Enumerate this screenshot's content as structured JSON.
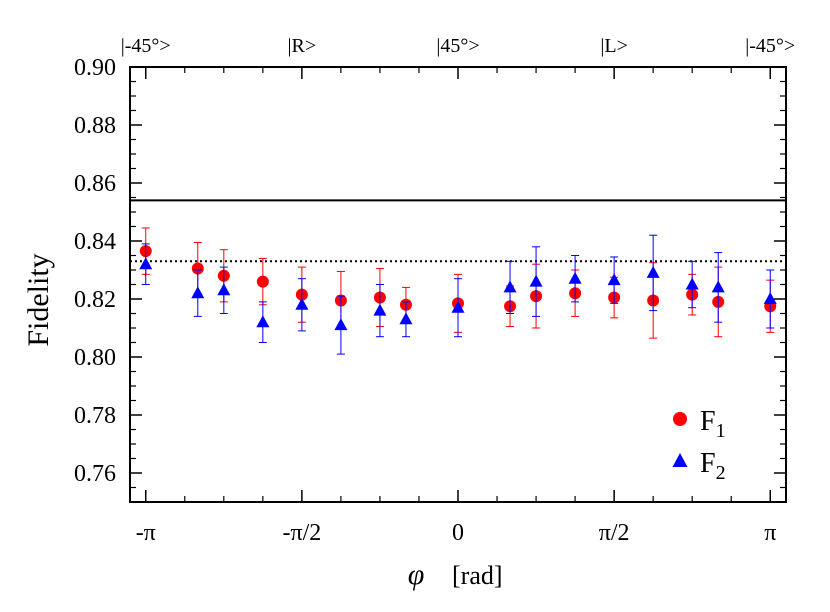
{
  "chart_data": {
    "type": "scatter",
    "xlabel_symbol": "φ",
    "xlabel_unit": "[rad]",
    "ylabel": "Fidelity",
    "ylim": [
      0.75,
      0.9
    ],
    "xlim": [
      -3.3,
      3.3
    ],
    "y_ticks": [
      0.76,
      0.78,
      0.8,
      0.82,
      0.84,
      0.86,
      0.88,
      0.9
    ],
    "y_tick_labels": [
      "0.76",
      "0.78",
      "0.80",
      "0.82",
      "0.84",
      "0.86",
      "0.88",
      "0.90"
    ],
    "x_ticks": [
      -3.14159,
      -1.5708,
      0,
      1.5708,
      3.14159
    ],
    "x_tick_labels": [
      "-π",
      "-π/2",
      "0",
      "π/2",
      "π"
    ],
    "top_labels": [
      {
        "x": -3.14159,
        "text": "|-45°>"
      },
      {
        "x": -1.5708,
        "text": "|R>"
      },
      {
        "x": 0,
        "text": "|45°>"
      },
      {
        "x": 1.5708,
        "text": "|L>"
      },
      {
        "x": 3.14159,
        "text": "|-45°>"
      }
    ],
    "hlines": [
      {
        "y": 0.854,
        "style": "solid"
      },
      {
        "y": 0.833,
        "style": "dotted"
      }
    ],
    "legend_position": "bottom-right",
    "series": [
      {
        "name": "F1",
        "marker": "circle",
        "color": "#ff0000",
        "x": [
          -3.14159,
          -2.618,
          -2.356,
          -1.9635,
          -1.5708,
          -1.1781,
          -0.7854,
          -0.5236,
          0,
          0.5236,
          0.7854,
          1.1781,
          1.5708,
          1.9635,
          2.356,
          2.618,
          3.14159
        ],
        "y": [
          0.8365,
          0.8305,
          0.828,
          0.826,
          0.8215,
          0.8195,
          0.8205,
          0.818,
          0.8185,
          0.8175,
          0.821,
          0.822,
          0.8205,
          0.8195,
          0.8215,
          0.819,
          0.8175
        ],
        "err": [
          0.008,
          0.009,
          0.009,
          0.008,
          0.0095,
          0.01,
          0.01,
          0.006,
          0.01,
          0.007,
          0.011,
          0.008,
          0.007,
          0.013,
          0.007,
          0.012,
          0.009
        ]
      },
      {
        "name": "F2",
        "marker": "triangle",
        "color": "#0000ff",
        "x": [
          -3.14159,
          -2.618,
          -2.356,
          -1.9635,
          -1.5708,
          -1.1781,
          -0.7854,
          -0.5236,
          0,
          0.5236,
          0.7854,
          1.1781,
          1.5708,
          1.9635,
          2.356,
          2.618,
          3.14159
        ],
        "y": [
          0.832,
          0.822,
          0.823,
          0.812,
          0.818,
          0.811,
          0.816,
          0.813,
          0.817,
          0.824,
          0.826,
          0.827,
          0.8265,
          0.829,
          0.825,
          0.824,
          0.82
        ],
        "err": [
          0.007,
          0.008,
          0.008,
          0.007,
          0.009,
          0.01,
          0.009,
          0.006,
          0.01,
          0.009,
          0.012,
          0.008,
          0.008,
          0.013,
          0.008,
          0.012,
          0.01
        ]
      }
    ]
  }
}
